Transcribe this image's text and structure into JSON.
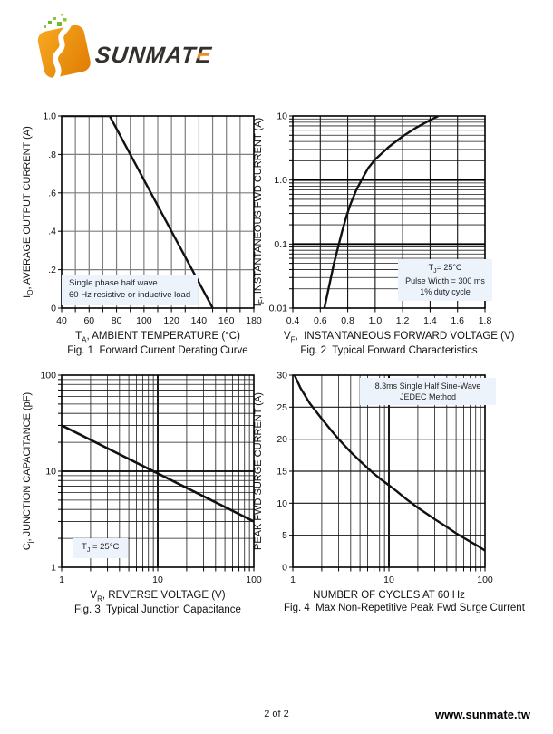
{
  "logo": {
    "wordmark_left": "SUNMAT",
    "wordmark_e": "E",
    "colors": {
      "orange": "#F49C1C",
      "orange_dark": "#E07D05",
      "green": "#8CC63F",
      "text": "#35302B"
    }
  },
  "footer": {
    "page_label": "2 of 2",
    "website": "www.sunmate.tw"
  },
  "colors": {
    "annotation_bg": "#EDF3FB",
    "grid_gray": "#7E7E7E",
    "line_black": "#111111"
  },
  "chart_data": [
    {
      "id": "fig1",
      "type": "line",
      "caption": "Fig. 1  Forward Current Derating Curve",
      "y_label": "IO, AVERAGE OUTPUT CURRENT (A)",
      "y_label_parts": {
        "pre": "I",
        "sub": "O",
        "post": ", AVERAGE OUTPUT CURRENT (A)"
      },
      "x_label": "TA, AMBIENT TEMPERATURE (°C)",
      "x_label_parts": {
        "pre": "T",
        "sub": "A",
        "post": ", AMBIENT TEMPERATURE (°C)"
      },
      "x": {
        "scale": "linear",
        "min": 40,
        "max": 180,
        "minor_step": 10,
        "ticks": [
          [
            40,
            "40"
          ],
          [
            60,
            "60"
          ],
          [
            80,
            "80"
          ],
          [
            100,
            "100"
          ],
          [
            120,
            "120"
          ],
          [
            140,
            "140"
          ],
          [
            160,
            "160"
          ],
          [
            180,
            "180"
          ]
        ]
      },
      "y": {
        "scale": "linear",
        "min": 0,
        "max": 1,
        "ticks": [
          [
            1,
            "1.0"
          ],
          [
            0.8,
            ".8"
          ],
          [
            0.6,
            ".6"
          ],
          [
            0.4,
            ".4"
          ],
          [
            0.2,
            ".2"
          ],
          [
            0,
            "0"
          ]
        ]
      },
      "grid": {
        "minor_color": "#7e7e7e",
        "minor_width": 1.2,
        "major_color": "#7e7e7e",
        "major_width": 1.2
      },
      "curve": [
        [
          40,
          1
        ],
        [
          75,
          1
        ],
        [
          150,
          0
        ]
      ],
      "curve_width": 2.4,
      "annotation": {
        "lines": [
          "Single phase half wave",
          "60 Hz resistive or inductive load"
        ]
      }
    },
    {
      "id": "fig2",
      "type": "line",
      "caption": "Fig. 2  Typical Forward Characteristics",
      "y_label": "IF, INSTANTANEOUS FWD CURRENT (A)",
      "y_label_parts": {
        "pre": "I",
        "sub": "F",
        "post": ", INSTANTANEOUS FWD CURRENT (A)"
      },
      "x_label": "VF, INSTANTANEOUS FORWARD VOLTAGE (V)",
      "x_label_parts": {
        "pre": "V",
        "sub": "F",
        "post": ",  INSTANTANEOUS FORWARD VOLTAGE (V)"
      },
      "x": {
        "scale": "linear",
        "min": 0.4,
        "max": 1.8,
        "ticks": [
          [
            0.4,
            "0.4"
          ],
          [
            0.6,
            "0.6"
          ],
          [
            0.8,
            "0.8"
          ],
          [
            1.0,
            "1.0"
          ],
          [
            1.2,
            "1.2"
          ],
          [
            1.4,
            "1.4"
          ],
          [
            1.6,
            "1.6"
          ],
          [
            1.8,
            "1.8"
          ]
        ],
        "grid": {
          "minor_color": "#141414",
          "minor_width": 1.1,
          "major_color": "#141414",
          "major_width": 1.1
        }
      },
      "y": {
        "scale": "log",
        "min": 0.01,
        "max": 10,
        "ticks": [
          [
            10,
            "10"
          ],
          [
            1,
            "1.0"
          ],
          [
            0.1,
            "0.1"
          ],
          [
            0.01,
            "0.01"
          ]
        ]
      },
      "grid": {
        "minor_color": "#1c1c1c",
        "minor_width": 0.8,
        "major_color": "#000000",
        "major_width": 1.8
      },
      "curve": [
        [
          0.63,
          0.01
        ],
        [
          0.65,
          0.016
        ],
        [
          0.675,
          0.028
        ],
        [
          0.7,
          0.05
        ],
        [
          0.73,
          0.09
        ],
        [
          0.76,
          0.16
        ],
        [
          0.79,
          0.27
        ],
        [
          0.82,
          0.42
        ],
        [
          0.86,
          0.68
        ],
        [
          0.9,
          1.0
        ],
        [
          0.95,
          1.55
        ],
        [
          1.0,
          2.1
        ],
        [
          1.1,
          3.3
        ],
        [
          1.2,
          4.8
        ],
        [
          1.3,
          6.6
        ],
        [
          1.4,
          8.6
        ],
        [
          1.46,
          10
        ]
      ],
      "curve_width": 2.4,
      "annotation": {
        "line1_parts": {
          "pre": "T",
          "sub": "J",
          "post": "= 25°C"
        },
        "lines": [
          "TJ= 25°C",
          "Pulse Width = 300 ms",
          "1% duty cycle"
        ]
      }
    },
    {
      "id": "fig3",
      "type": "line",
      "caption": "Fig. 3  Typical Junction Capacitance",
      "y_label": "Cj, JUNCTION CAPACITANCE (pF)",
      "y_label_parts": {
        "pre": "C",
        "sub": "j",
        "post": ", JUNCTION CAPACITANCE (pF)"
      },
      "x_label": "VR, REVERSE VOLTAGE (V)",
      "x_label_parts": {
        "pre": "V",
        "sub": "R",
        "post": ", REVERSE VOLTAGE (V)"
      },
      "x": {
        "scale": "log",
        "min": 1,
        "max": 100,
        "ticks": [
          [
            1,
            "1"
          ],
          [
            10,
            "10"
          ],
          [
            100,
            "100"
          ]
        ]
      },
      "y": {
        "scale": "log",
        "min": 1,
        "max": 100,
        "ticks": [
          [
            100,
            "100"
          ],
          [
            10,
            "10"
          ],
          [
            1,
            "1"
          ]
        ]
      },
      "grid": {
        "minor_color": "#1c1c1c",
        "minor_width": 0.8,
        "major_color": "#000000",
        "major_width": 1.8
      },
      "curve": [
        [
          1,
          30
        ],
        [
          10,
          9.5
        ],
        [
          100,
          3.0
        ]
      ],
      "curve_width": 2.6,
      "annotation": {
        "line1_parts": {
          "pre": "T",
          "sub": "J",
          "post": " = 25°C"
        },
        "lines": [
          "TJ = 25°C"
        ]
      }
    },
    {
      "id": "fig4",
      "type": "line",
      "caption": "Fig. 4  Max Non-Repetitive Peak Fwd Surge Current",
      "y_label": "PEAK FWD SURGE CURRENT (A)",
      "y_label_parts": {
        "pre": "",
        "sub": "",
        "post": "PEAK FWD SURGE CURRENT (A)"
      },
      "x_label": "NUMBER OF CYCLES AT 60 Hz",
      "x_label_parts": {
        "pre": "",
        "sub": "",
        "post": "NUMBER OF CYCLES AT 60 Hz"
      },
      "x": {
        "scale": "log",
        "min": 1,
        "max": 100,
        "ticks": [
          [
            1,
            "1"
          ],
          [
            10,
            "10"
          ],
          [
            100,
            "100"
          ]
        ]
      },
      "y": {
        "scale": "linear",
        "min": 0,
        "max": 30,
        "ticks": [
          [
            30,
            "30"
          ],
          [
            25,
            "25"
          ],
          [
            20,
            "20"
          ],
          [
            15,
            "15"
          ],
          [
            10,
            "10"
          ],
          [
            5,
            "5"
          ],
          [
            0,
            "0"
          ]
        ],
        "grid": {
          "minor_color": "#161616",
          "minor_width": 1.2,
          "major_color": "#161616",
          "major_width": 1.2
        }
      },
      "grid": {
        "minor_color": "#1c1c1c",
        "minor_width": 0.8,
        "major_color": "#000000",
        "major_width": 1.8
      },
      "curve": [
        [
          1,
          30.6
        ],
        [
          1.2,
          28
        ],
        [
          1.5,
          25.6
        ],
        [
          2,
          23.2
        ],
        [
          2.5,
          21.4
        ],
        [
          3,
          20
        ],
        [
          4,
          18
        ],
        [
          5,
          16.6
        ],
        [
          6,
          15.5
        ],
        [
          7,
          14.6
        ],
        [
          8,
          13.9
        ],
        [
          10,
          12.8
        ],
        [
          12,
          11.9
        ],
        [
          15,
          10.7
        ],
        [
          20,
          9.3
        ],
        [
          25,
          8.3
        ],
        [
          30,
          7.5
        ],
        [
          40,
          6.3
        ],
        [
          50,
          5.3
        ],
        [
          60,
          4.6
        ],
        [
          70,
          4.0
        ],
        [
          85,
          3.3
        ],
        [
          100,
          2.6
        ]
      ],
      "curve_width": 2.4,
      "annotation": {
        "lines": [
          "8.3ms Single Half Sine-Wave",
          "JEDEC Method"
        ]
      }
    }
  ]
}
